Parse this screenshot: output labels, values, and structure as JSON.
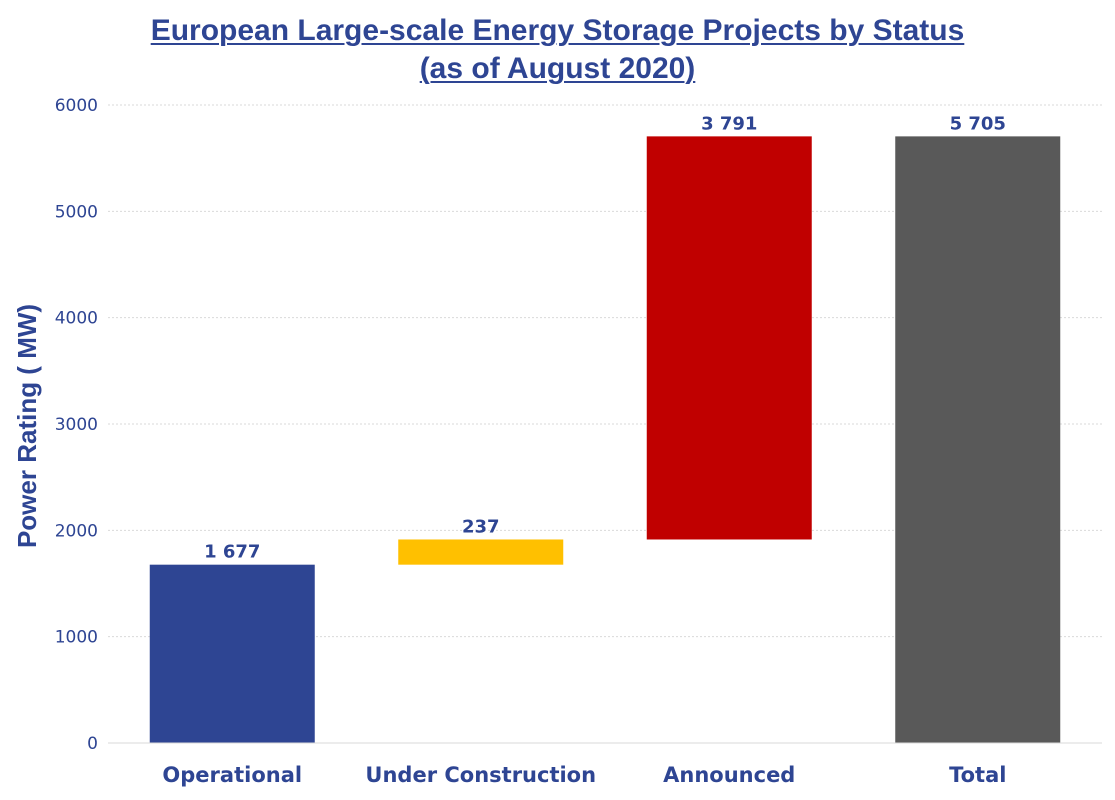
{
  "chart_data": {
    "type": "bar",
    "subtype": "waterfall",
    "title": "European Large-scale Energy Storage Projects by Status",
    "subtitle": "(as of August 2020)",
    "xlabel": "",
    "ylabel": "Power Rating ( MW)",
    "ylim": [
      0,
      6000
    ],
    "yticks": [
      "0",
      "1000",
      "2000",
      "3000",
      "4000",
      "5000",
      "6000"
    ],
    "grid": true,
    "categories": [
      "Operational",
      "Under Construction",
      "Announced",
      "Total"
    ],
    "values": [
      1677,
      237,
      3791,
      5705
    ],
    "bases": [
      0,
      1677,
      1914,
      0
    ],
    "value_labels": [
      "1 677",
      "237",
      "3 791",
      "5 705"
    ],
    "colors": [
      "#2e4593",
      "#ffc000",
      "#c00000",
      "#595959"
    ]
  }
}
